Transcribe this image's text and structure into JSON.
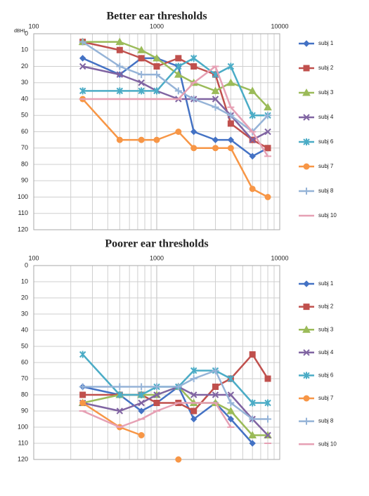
{
  "chart_data": [
    {
      "type": "line",
      "title": "Better ear thresholds",
      "y_label": "dBHL",
      "x": [
        250,
        500,
        750,
        1000,
        1500,
        2000,
        3000,
        4000,
        6000,
        8000
      ],
      "xlim": [
        100,
        10000
      ],
      "xticks": [
        100,
        1000,
        10000
      ],
      "xminor": [
        200,
        300,
        400,
        500,
        600,
        700,
        800,
        900,
        2000,
        3000,
        4000,
        5000,
        6000,
        7000,
        8000,
        9000
      ],
      "log_x": true,
      "ylim": [
        0,
        120
      ],
      "y_reversed": true,
      "yticks": [
        0,
        10,
        20,
        30,
        40,
        50,
        60,
        70,
        80,
        90,
        100,
        110,
        120
      ],
      "grid": true,
      "legend": "right",
      "series": [
        {
          "name": "subj 1",
          "color": "#4472c4",
          "marker": "diamond",
          "values": [
            15,
            25,
            15,
            15,
            20,
            60,
            65,
            65,
            75,
            70
          ]
        },
        {
          "name": "subj 2",
          "color": "#c0504d",
          "marker": "square",
          "values": [
            5,
            10,
            15,
            20,
            15,
            20,
            25,
            55,
            65,
            70
          ]
        },
        {
          "name": "subj 3",
          "color": "#9bbb59",
          "marker": "triangle",
          "values": [
            5,
            5,
            10,
            15,
            25,
            30,
            35,
            30,
            35,
            45
          ]
        },
        {
          "name": "subj 4",
          "color": "#8064a2",
          "marker": "x",
          "values": [
            20,
            25,
            30,
            35,
            40,
            40,
            40,
            50,
            65,
            60
          ]
        },
        {
          "name": "subj 6",
          "color": "#4bacc6",
          "marker": "star",
          "values": [
            35,
            35,
            35,
            35,
            20,
            15,
            25,
            20,
            50,
            50
          ]
        },
        {
          "name": "subj 7",
          "color": "#f79646",
          "marker": "circle",
          "values": [
            40,
            65,
            65,
            65,
            60,
            70,
            70,
            70,
            95,
            100
          ]
        },
        {
          "name": "subj 8",
          "color": "#95b3d7",
          "marker": "plus",
          "values": [
            5,
            20,
            25,
            25,
            35,
            40,
            45,
            50,
            60,
            50
          ]
        },
        {
          "name": "subj 10",
          "color": "#e6a0b4",
          "marker": "dash",
          "values": [
            40,
            40,
            40,
            40,
            40,
            30,
            20,
            45,
            60,
            75
          ]
        }
      ]
    },
    {
      "type": "line",
      "title": "Poorer ear thresholds",
      "x": [
        250,
        500,
        750,
        1000,
        1500,
        2000,
        3000,
        4000,
        6000,
        8000
      ],
      "xlim": [
        100,
        10000
      ],
      "xticks": [
        100,
        1000,
        10000
      ],
      "xminor": [
        200,
        300,
        400,
        500,
        600,
        700,
        800,
        900,
        2000,
        3000,
        4000,
        5000,
        6000,
        7000,
        8000,
        9000
      ],
      "log_x": true,
      "ylim": [
        0,
        120
      ],
      "y_reversed": true,
      "yticks": [
        0,
        10,
        20,
        30,
        40,
        50,
        60,
        70,
        80,
        90,
        100,
        110,
        120
      ],
      "grid": true,
      "legend": "right",
      "series": [
        {
          "name": "subj 1",
          "color": "#4472c4",
          "marker": "diamond",
          "values": [
            75,
            80,
            90,
            85,
            75,
            95,
            85,
            95,
            110,
            null
          ]
        },
        {
          "name": "subj 2",
          "color": "#c0504d",
          "marker": "square",
          "values": [
            80,
            80,
            80,
            85,
            85,
            90,
            75,
            70,
            55,
            70
          ]
        },
        {
          "name": "subj 3",
          "color": "#9bbb59",
          "marker": "triangle",
          "values": [
            85,
            80,
            80,
            80,
            75,
            85,
            85,
            90,
            105,
            105
          ]
        },
        {
          "name": "subj 4",
          "color": "#8064a2",
          "marker": "x",
          "values": [
            85,
            90,
            85,
            80,
            75,
            80,
            80,
            80,
            95,
            105
          ]
        },
        {
          "name": "subj 6",
          "color": "#4bacc6",
          "marker": "star",
          "values": [
            55,
            80,
            80,
            75,
            75,
            65,
            65,
            70,
            85,
            85
          ]
        },
        {
          "name": "subj 7",
          "color": "#f79646",
          "marker": "circle",
          "values": [
            85,
            100,
            105,
            null,
            120,
            null,
            null,
            null,
            null,
            null
          ]
        },
        {
          "name": "subj 8",
          "color": "#95b3d7",
          "marker": "plus",
          "values": [
            75,
            75,
            75,
            75,
            75,
            70,
            65,
            85,
            95,
            95
          ]
        },
        {
          "name": "subj 10",
          "color": "#e6a0b4",
          "marker": "dash",
          "values": [
            90,
            100,
            95,
            90,
            85,
            85,
            85,
            100,
            null,
            110
          ]
        }
      ]
    }
  ]
}
